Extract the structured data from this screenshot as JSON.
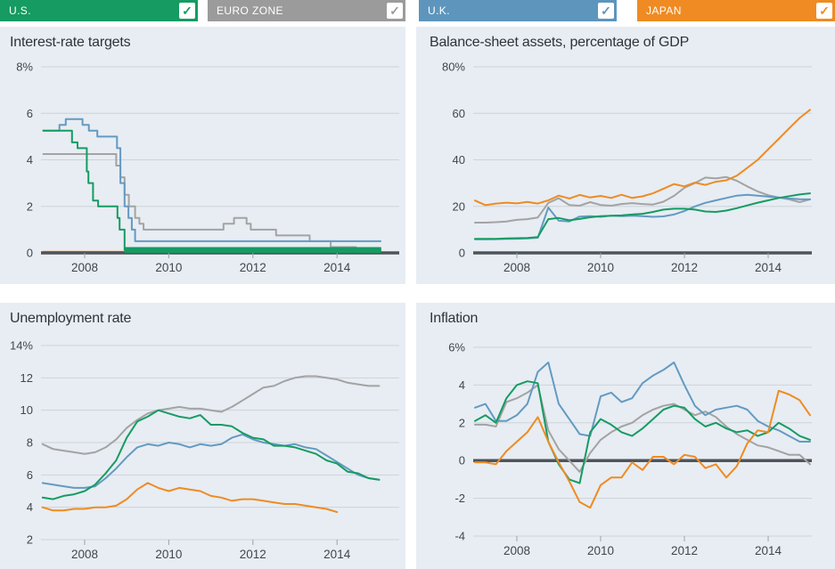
{
  "icons": {
    "checkmark": "✓"
  },
  "colors": {
    "us": "#169B62",
    "eurozone": "#9B9B9B",
    "uk": "#5E95BC",
    "japan": "#EF8B22",
    "panel_bg": "#E7EDF3",
    "grid": "#CCD3DA",
    "zero_axis": "#4E5459",
    "tick": "#9AA2AA",
    "text": "#40464D"
  },
  "header": {
    "toggles": [
      {
        "id": "us",
        "label": "U.S.",
        "color": "#169B62",
        "checked": true
      },
      {
        "id": "eurozone",
        "label": "EURO ZONE",
        "color": "#9B9B9B",
        "checked": true
      },
      {
        "id": "uk",
        "label": "U.K.",
        "color": "#5E95BC",
        "checked": true
      },
      {
        "id": "japan",
        "label": "JAPAN",
        "color": "#EF8B22",
        "checked": true
      }
    ]
  },
  "chart_data": [
    {
      "id": "interest-rate-targets",
      "title": "Interest-rate targets",
      "type": "line",
      "y_ticks": {
        "values": [
          8,
          6,
          4,
          2,
          0
        ],
        "labels": [
          "8%",
          "6",
          "4",
          "2",
          "0"
        ]
      },
      "x_ticks": {
        "values": [
          2008,
          2010,
          2012,
          2014
        ],
        "labels": [
          "2008",
          "2010",
          "2012",
          "2014"
        ]
      },
      "ylim": [
        0,
        8
      ],
      "zero_axis": true,
      "grid": true,
      "series": [
        {
          "name": "japan",
          "label": "Japan",
          "color": "#EF8B22",
          "mode": "step",
          "behind_axis": true,
          "points": [
            [
              2007,
              0.05
            ],
            [
              2015.05,
              0.05
            ]
          ]
        },
        {
          "name": "eurozone",
          "label": "Euro zone",
          "color": "#A3A3A3",
          "mode": "step",
          "points": [
            [
              2007,
              4.25
            ],
            [
              2008.75,
              3.75
            ],
            [
              2008.85,
              3.25
            ],
            [
              2008.95,
              2.5
            ],
            [
              2009.05,
              2.0
            ],
            [
              2009.2,
              1.5
            ],
            [
              2009.3,
              1.25
            ],
            [
              2009.4,
              1.0
            ],
            [
              2011.3,
              1.25
            ],
            [
              2011.55,
              1.5
            ],
            [
              2011.85,
              1.25
            ],
            [
              2011.95,
              1.0
            ],
            [
              2012.55,
              0.75
            ],
            [
              2013.35,
              0.5
            ],
            [
              2013.85,
              0.25
            ],
            [
              2014.45,
              0.1
            ],
            [
              2015.05,
              0.1
            ]
          ]
        },
        {
          "name": "uk",
          "label": "U.K.",
          "color": "#649AC1",
          "mode": "step",
          "points": [
            [
              2007,
              5.25
            ],
            [
              2007.4,
              5.5
            ],
            [
              2007.55,
              5.75
            ],
            [
              2007.95,
              5.5
            ],
            [
              2008.1,
              5.25
            ],
            [
              2008.3,
              5.0
            ],
            [
              2008.77,
              4.5
            ],
            [
              2008.85,
              3.0
            ],
            [
              2008.95,
              2.0
            ],
            [
              2009.04,
              1.5
            ],
            [
              2009.12,
              1.0
            ],
            [
              2009.2,
              0.5
            ],
            [
              2015.05,
              0.5
            ]
          ]
        },
        {
          "name": "us",
          "label": "U.S.",
          "color": "#169B62",
          "mode": "step",
          "points": [
            [
              2007,
              5.25
            ],
            [
              2007.7,
              4.75
            ],
            [
              2007.83,
              4.5
            ],
            [
              2008.05,
              3.5
            ],
            [
              2008.09,
              3.0
            ],
            [
              2008.2,
              2.25
            ],
            [
              2008.32,
              2.0
            ],
            [
              2008.78,
              1.5
            ],
            [
              2008.83,
              1.0
            ],
            [
              2008.95,
              0.13
            ],
            [
              2015.05,
              0.13
            ]
          ]
        },
        {
          "name": "us-zero-band",
          "label": "U.S. 0–0.25% target band",
          "color": "#169B62",
          "mode": "band",
          "x0": 2008.95,
          "x1": 2015.05,
          "y0": 0,
          "y1": 0.25
        }
      ]
    },
    {
      "id": "balance-sheet-assets",
      "title": "Balance-sheet assets, percentage of GDP",
      "type": "line",
      "y_ticks": {
        "values": [
          80,
          60,
          40,
          20,
          0
        ],
        "labels": [
          "80%",
          "60",
          "40",
          "20",
          "0"
        ]
      },
      "x_ticks": {
        "values": [
          2008,
          2010,
          2012,
          2014
        ],
        "labels": [
          "2008",
          "2010",
          "2012",
          "2014"
        ]
      },
      "ylim": [
        0,
        80
      ],
      "zero_axis": true,
      "grid": true,
      "x_start": 2007,
      "x_step": 0.25,
      "series": [
        {
          "name": "eurozone",
          "label": "Euro zone",
          "color": "#A3A3A3",
          "mode": "line",
          "values": [
            13,
            13,
            13.2,
            13.5,
            14.2,
            14.5,
            15.2,
            21.5,
            23.5,
            20.6,
            20.3,
            21.8,
            20.6,
            20.3,
            21,
            21.4,
            21,
            20.8,
            22,
            24.5,
            28,
            30,
            32.4,
            32,
            32.6,
            31,
            28.6,
            26.4,
            24.8,
            23.8,
            23,
            21.8,
            23
          ]
        },
        {
          "name": "uk",
          "label": "U.K.",
          "color": "#649AC1",
          "mode": "line",
          "values": [
            5.8,
            5.8,
            5.9,
            6,
            6.1,
            6.2,
            6.5,
            19.5,
            13.8,
            13.5,
            15.6,
            15.8,
            15.5,
            16,
            15.8,
            16,
            15.8,
            15.5,
            15.7,
            16.5,
            18,
            20,
            21.5,
            22.6,
            23.6,
            24.6,
            25,
            24.6,
            24.2,
            23.8,
            23.4,
            23.1,
            23
          ]
        },
        {
          "name": "us",
          "label": "U.S.",
          "color": "#169B62",
          "mode": "line",
          "values": [
            6,
            6,
            6,
            6.2,
            6.3,
            6.4,
            6.8,
            14.5,
            15,
            14,
            14.6,
            15.3,
            15.8,
            16,
            16.1,
            16.5,
            16.8,
            17.6,
            18.6,
            19,
            19,
            18.6,
            17.8,
            17.6,
            18.2,
            19.2,
            20.4,
            21.6,
            22.6,
            23.6,
            24.4,
            25.1,
            25.6
          ]
        },
        {
          "name": "japan",
          "label": "Japan",
          "color": "#EF8B22",
          "mode": "line",
          "values": [
            22.5,
            20.5,
            21.2,
            21.6,
            21.3,
            21.9,
            21.2,
            22.6,
            24.6,
            23.4,
            24.9,
            23.8,
            24.5,
            23.6,
            25,
            23.6,
            24.3,
            25.6,
            27.6,
            29.6,
            28.6,
            30.2,
            29.2,
            30.6,
            31.2,
            33.2,
            36.5,
            40,
            44.5,
            49,
            53.5,
            58,
            61.5
          ]
        }
      ]
    },
    {
      "id": "unemployment-rate",
      "title": "Unemployment rate",
      "type": "line",
      "y_ticks": {
        "values": [
          14,
          12,
          10,
          8,
          6,
          4,
          2
        ],
        "labels": [
          "14%",
          "12",
          "10",
          "8",
          "6",
          "4",
          "2"
        ]
      },
      "x_ticks": {
        "values": [
          2008,
          2010,
          2012,
          2014
        ],
        "labels": [
          "2008",
          "2010",
          "2012",
          "2014"
        ]
      },
      "ylim": [
        2,
        14
      ],
      "zero_axis": false,
      "grid": true,
      "x_start": 2007,
      "x_step": 0.25,
      "series": [
        {
          "name": "eurozone",
          "label": "Euro zone",
          "color": "#A3A3A3",
          "mode": "line",
          "values": [
            7.9,
            7.6,
            7.5,
            7.4,
            7.3,
            7.4,
            7.7,
            8.2,
            8.9,
            9.4,
            9.8,
            10.0,
            10.1,
            10.2,
            10.1,
            10.1,
            10.0,
            9.9,
            10.2,
            10.6,
            11.0,
            11.4,
            11.5,
            11.8,
            12.0,
            12.1,
            12.1,
            12.0,
            11.9,
            11.7,
            11.6,
            11.5,
            11.5
          ]
        },
        {
          "name": "uk",
          "label": "U.K.",
          "color": "#649AC1",
          "mode": "line",
          "values": [
            5.5,
            5.4,
            5.3,
            5.2,
            5.2,
            5.3,
            5.8,
            6.4,
            7.1,
            7.7,
            7.9,
            7.8,
            8.0,
            7.9,
            7.7,
            7.9,
            7.8,
            7.9,
            8.3,
            8.5,
            8.2,
            8.0,
            7.9,
            7.8,
            7.9,
            7.7,
            7.6,
            7.2,
            6.8,
            6.4,
            6.0,
            5.8,
            5.7
          ]
        },
        {
          "name": "us",
          "label": "U.S.",
          "color": "#169B62",
          "mode": "line",
          "values": [
            4.6,
            4.5,
            4.7,
            4.8,
            5.0,
            5.4,
            6.1,
            6.9,
            8.3,
            9.3,
            9.6,
            10.0,
            9.8,
            9.6,
            9.5,
            9.7,
            9.1,
            9.1,
            9.0,
            8.6,
            8.3,
            8.2,
            7.8,
            7.8,
            7.7,
            7.5,
            7.3,
            6.9,
            6.7,
            6.2,
            6.1,
            5.8,
            5.7
          ]
        },
        {
          "name": "japan",
          "label": "Japan",
          "color": "#EF8B22",
          "mode": "line",
          "values": [
            4.0,
            3.8,
            3.8,
            3.9,
            3.9,
            4.0,
            4.0,
            4.1,
            4.5,
            5.1,
            5.5,
            5.2,
            5.0,
            5.2,
            5.1,
            5.0,
            4.7,
            4.6,
            4.4,
            4.5,
            4.5,
            4.4,
            4.3,
            4.2,
            4.2,
            4.1,
            4.0,
            3.9,
            3.7
          ]
        }
      ]
    },
    {
      "id": "inflation",
      "title": "Inflation",
      "type": "line",
      "y_ticks": {
        "values": [
          6,
          4,
          2,
          0,
          -2,
          -4
        ],
        "labels": [
          "6%",
          "4",
          "2",
          "0",
          "-2",
          "-4"
        ]
      },
      "x_ticks": {
        "values": [
          2008,
          2010,
          2012,
          2014
        ],
        "labels": [
          "2008",
          "2010",
          "2012",
          "2014"
        ]
      },
      "ylim": [
        -4,
        6
      ],
      "zero_axis": true,
      "grid": true,
      "x_start": 2007,
      "x_step": 0.25,
      "series": [
        {
          "name": "eurozone",
          "label": "Euro zone",
          "color": "#A3A3A3",
          "mode": "line",
          "values": [
            1.9,
            1.9,
            1.8,
            3.1,
            3.3,
            3.6,
            4.0,
            1.6,
            0.6,
            0.0,
            -0.6,
            0.4,
            1.1,
            1.5,
            1.8,
            2.0,
            2.4,
            2.7,
            2.9,
            3.0,
            2.7,
            2.4,
            2.6,
            2.3,
            1.8,
            1.4,
            1.1,
            0.8,
            0.7,
            0.5,
            0.3,
            0.3,
            -0.2
          ]
        },
        {
          "name": "uk",
          "label": "U.K.",
          "color": "#649AC1",
          "mode": "line",
          "values": [
            2.8,
            3.0,
            2.1,
            2.1,
            2.4,
            3.0,
            4.7,
            5.2,
            3.0,
            2.2,
            1.4,
            1.3,
            3.4,
            3.6,
            3.1,
            3.3,
            4.1,
            4.5,
            4.8,
            5.2,
            4.0,
            2.9,
            2.4,
            2.7,
            2.8,
            2.9,
            2.7,
            2.1,
            1.8,
            1.6,
            1.3,
            1.0,
            1.0
          ]
        },
        {
          "name": "us",
          "label": "U.S.",
          "color": "#169B62",
          "mode": "line",
          "values": [
            2.1,
            2.4,
            2.0,
            3.3,
            4.0,
            4.2,
            4.1,
            1.0,
            -0.2,
            -1.0,
            -1.2,
            1.5,
            2.2,
            1.9,
            1.5,
            1.3,
            1.7,
            2.2,
            2.7,
            2.9,
            2.8,
            2.2,
            1.8,
            2.0,
            1.7,
            1.5,
            1.6,
            1.3,
            1.5,
            2.0,
            1.7,
            1.3,
            1.1
          ]
        },
        {
          "name": "japan",
          "label": "Japan",
          "color": "#EF8B22",
          "mode": "line",
          "values": [
            -0.1,
            -0.1,
            -0.2,
            0.5,
            1.0,
            1.5,
            2.3,
            1.0,
            -0.1,
            -1.1,
            -2.2,
            -2.5,
            -1.3,
            -0.9,
            -0.9,
            -0.1,
            -0.5,
            0.2,
            0.2,
            -0.2,
            0.3,
            0.2,
            -0.4,
            -0.2,
            -0.9,
            -0.3,
            0.9,
            1.6,
            1.5,
            3.7,
            3.5,
            3.2,
            2.4
          ]
        }
      ]
    }
  ]
}
